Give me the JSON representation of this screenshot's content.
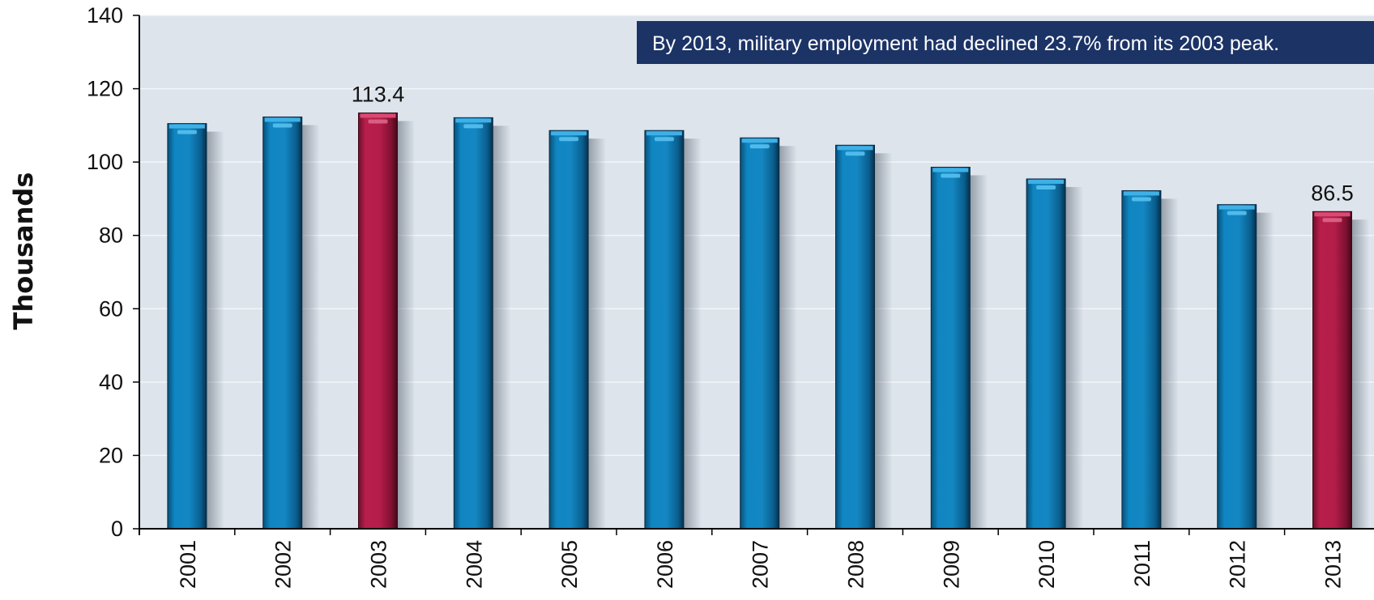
{
  "chart_data": {
    "type": "bar",
    "ylabel": "Thousands",
    "xlabel": "",
    "ylim": [
      0,
      140
    ],
    "yticks": [
      0,
      20,
      40,
      60,
      80,
      100,
      120,
      140
    ],
    "grid": true,
    "categories": [
      "2001",
      "2002",
      "2003",
      "2004",
      "2005",
      "2006",
      "2007",
      "2008",
      "2009",
      "2010",
      "2011",
      "2012",
      "2013"
    ],
    "values": [
      110.5,
      112.3,
      113.4,
      112.1,
      108.6,
      108.6,
      106.6,
      104.6,
      98.6,
      95.4,
      92.2,
      88.4,
      86.5
    ],
    "highlighted": [
      "2003",
      "2013"
    ],
    "data_labels": [
      {
        "category": "2003",
        "text": "113.4"
      },
      {
        "category": "2013",
        "text": "86.5"
      }
    ],
    "annotation": "By 2013, military employment had declined 23.7% from its 2003 peak.",
    "colors": {
      "bar": "#0f7fb8",
      "highlight": "#b31c48",
      "plot_background": "#dde4ec",
      "annotation_background": "#1c3366"
    }
  }
}
